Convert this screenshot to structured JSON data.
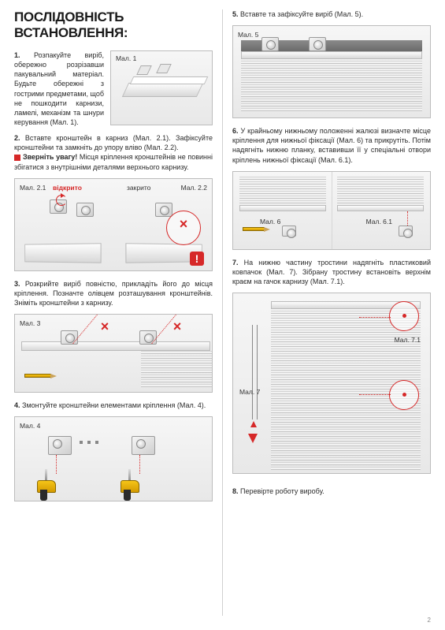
{
  "title": "ПОСЛІДОВНІСТЬ ВСТАНОВЛЕННЯ:",
  "left": {
    "s1": {
      "num": "1.",
      "text": "Розпакуйте виріб, обережно розрізавши пакувальний матеріал. Будьте обережні з гострими предметами, щоб не пошкодити карнизи, ламелі, механізм та шнури керування (Мал. 1).",
      "fig": "Мал. 1"
    },
    "s2": {
      "num": "2.",
      "text": "Вставте кронштейн в карниз (Мал. 2.1). Зафіксуйте кронштейни та замкніть до упору вліво (Мал. 2.2).",
      "warn": "Зверніть увагу!",
      "warnText": "Місця кріплення кронштейнів не повинні збігатися з внутрішніми деталями верхнього карнизу.",
      "fig21": "Мал. 2.1",
      "open": "відкрито",
      "closed": "закрито",
      "fig22": "Мал. 2.2"
    },
    "s3": {
      "num": "3.",
      "text": "Розкрийте виріб повністю, прикладіть його до місця кріплення. Позначте олівцем розташування кронштейнів. Зніміть кронштейни з карнизу.",
      "fig": "Мал. 3"
    },
    "s4": {
      "num": "4.",
      "text": "Змонтуйте кронштейни елементами кріплення (Мал. 4).",
      "fig": "Мал. 4"
    }
  },
  "right": {
    "s5": {
      "num": "5.",
      "text": "Вставте та зафіксуйте виріб (Мал. 5).",
      "fig": "Мал. 5"
    },
    "s6": {
      "num": "6.",
      "text": "У крайньому нижньому положенні жалюзі визначте місце кріплення для нижньої фіксації (Мал. 6) та прикрутіть. Потім надягніть нижню планку, вставивши її у спеціальні отвори кріплень нижньої фіксації (Мал. 6.1).",
      "fig6": "Мал. 6",
      "fig61": "Мал. 6.1"
    },
    "s7": {
      "num": "7.",
      "text": "На нижню частину тростини надягніть пластиковий ковпачок (Мал. 7). Зібрану тростину встановіть верхнім краєм на гачок карнизу (Мал. 7.1).",
      "fig7": "Мал. 7",
      "fig71": "Мал. 7.1"
    },
    "s8": {
      "num": "8.",
      "text": "Перевірте роботу виробу."
    }
  },
  "colors": {
    "accent": "#d62828",
    "drillYellow": "#f5c518",
    "border": "#bcbcbc"
  },
  "page_number": "2"
}
